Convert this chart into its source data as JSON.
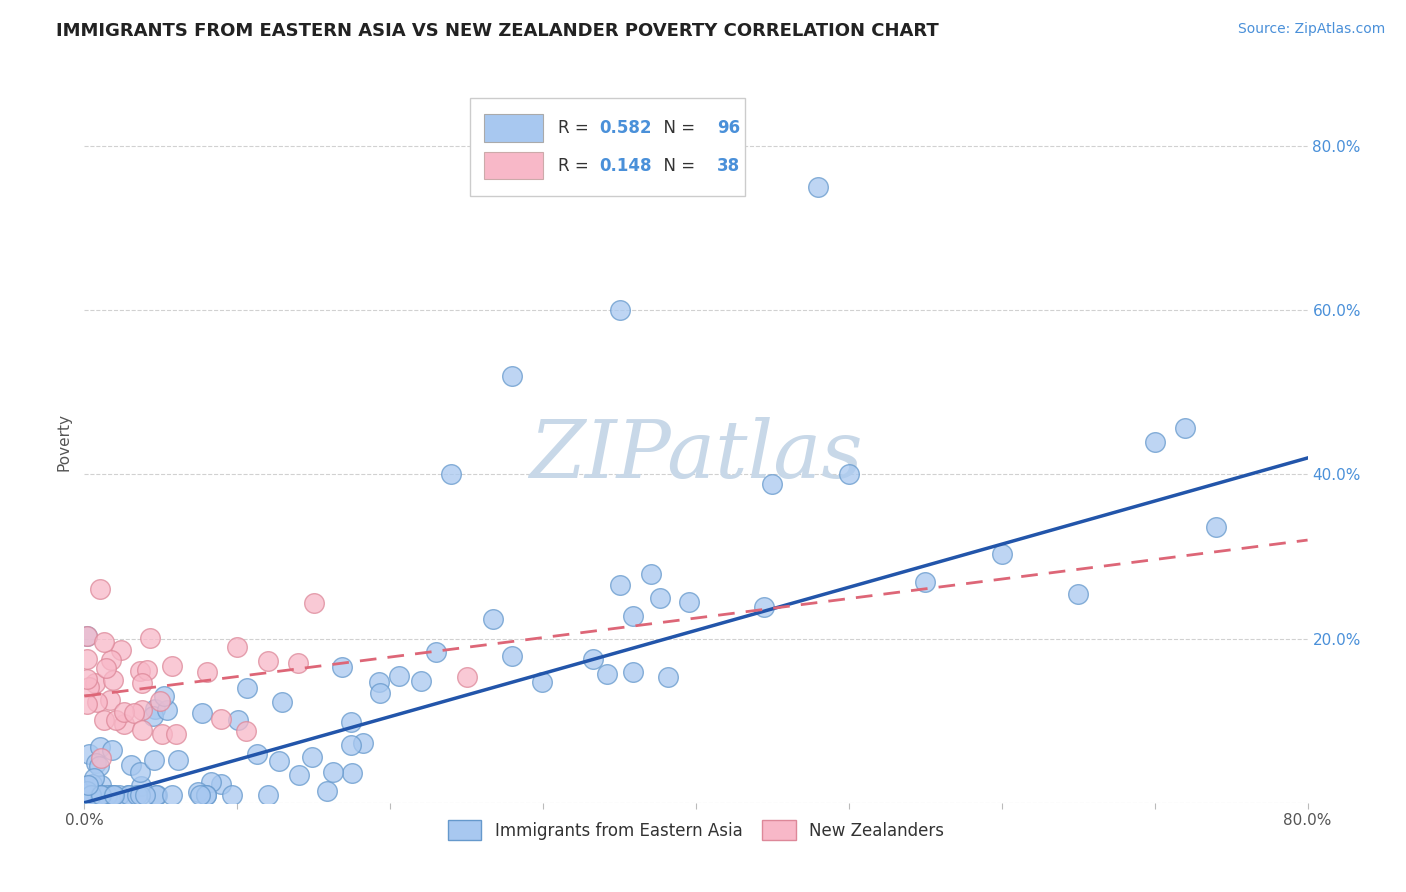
{
  "title": "IMMIGRANTS FROM EASTERN ASIA VS NEW ZEALANDER POVERTY CORRELATION CHART",
  "source": "Source: ZipAtlas.com",
  "ylabel": "Poverty",
  "legend1_R": "0.582",
  "legend1_N": "96",
  "legend2_R": "0.148",
  "legend2_N": "38",
  "legend1_label": "Immigrants from Eastern Asia",
  "legend2_label": "New Zealanders",
  "blue_color": "#A8C8F0",
  "blue_edge_color": "#6699CC",
  "pink_color": "#F8B8C8",
  "pink_edge_color": "#DD8899",
  "blue_line_color": "#2255AA",
  "pink_line_color": "#DD6677",
  "watermark_color": "#C8D8E8",
  "watermark": "ZIPatlas",
  "xlim": [
    0.0,
    0.8
  ],
  "ylim": [
    0.0,
    0.88
  ],
  "blue_trend": [
    0.0,
    0.0,
    0.8,
    0.42
  ],
  "pink_trend": [
    0.0,
    0.13,
    0.8,
    0.32
  ],
  "right_yticks": [
    0.2,
    0.4,
    0.6,
    0.8
  ],
  "right_ytick_labels": [
    "20.0%",
    "40.0%",
    "60.0%",
    "80.0%"
  ],
  "background_color": "#FFFFFF",
  "title_color": "#222222",
  "source_color": "#4A90D9",
  "axis_label_color": "#555555",
  "right_tick_color": "#4A90D9",
  "legend_text_color": "#333333",
  "legend_value_color": "#4A90D9"
}
